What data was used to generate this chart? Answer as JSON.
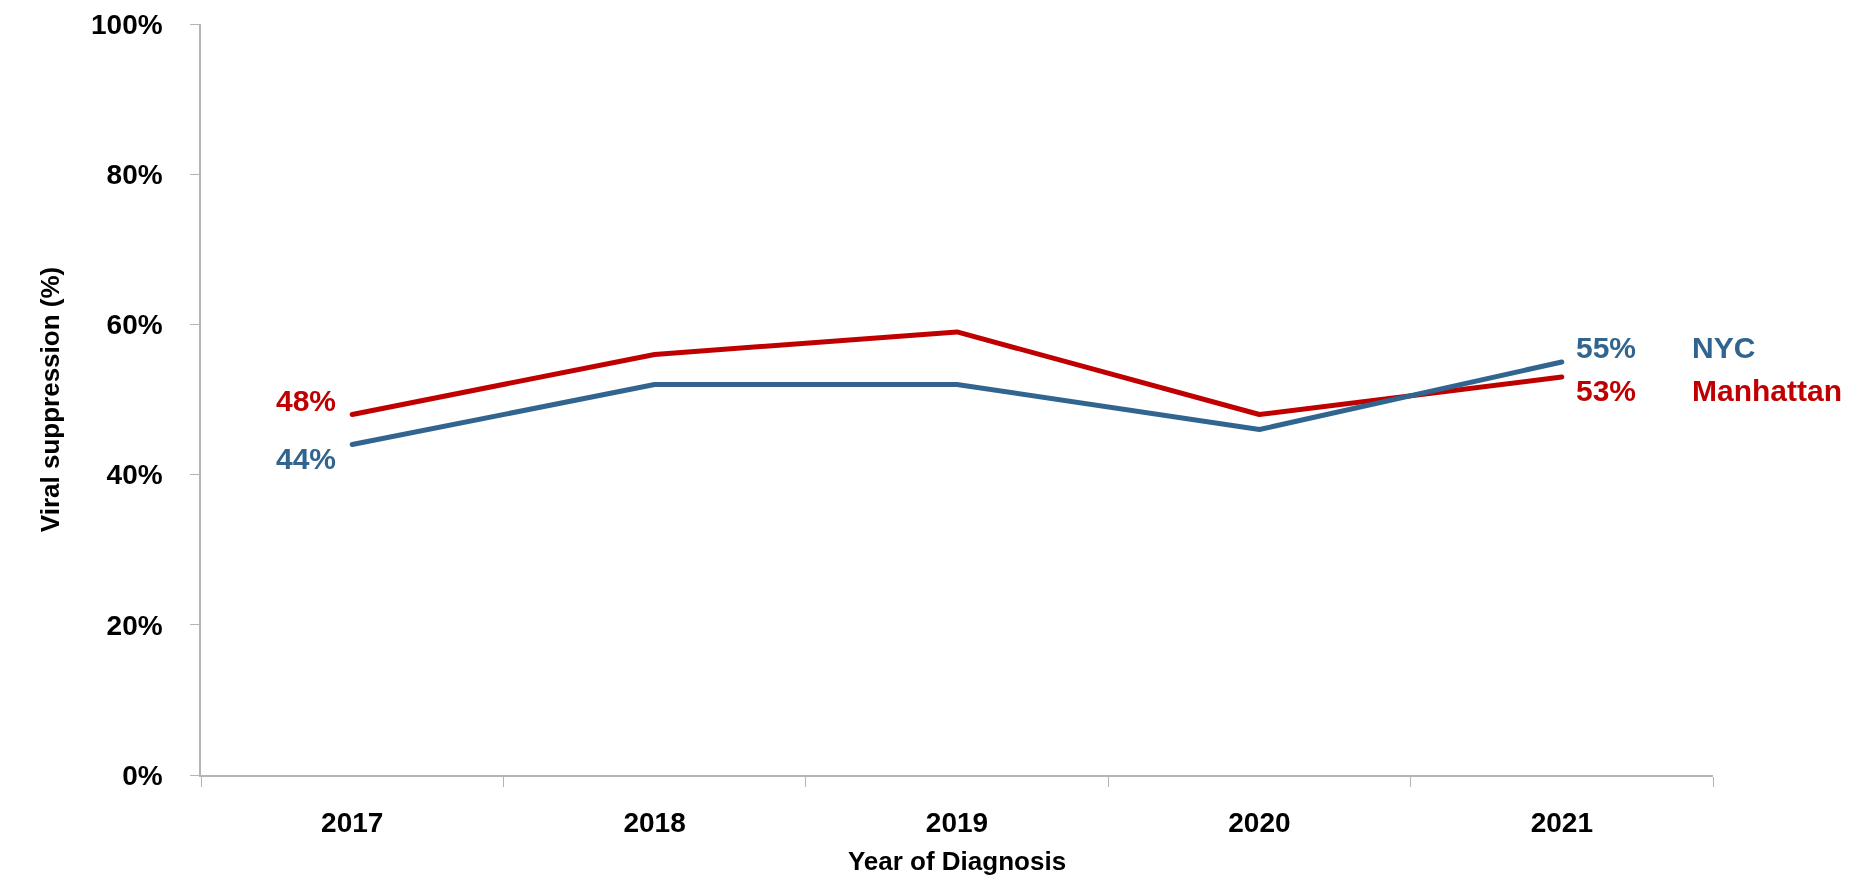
{
  "chart_data": {
    "type": "line",
    "xlabel": "Year of Diagnosis",
    "ylabel": "Viral suppression (%)",
    "categories": [
      "2017",
      "2018",
      "2019",
      "2020",
      "2021"
    ],
    "ylim": [
      0,
      100
    ],
    "yticks": [
      {
        "value": 0,
        "label": "0%"
      },
      {
        "value": 20,
        "label": "20%"
      },
      {
        "value": 40,
        "label": "40%"
      },
      {
        "value": 60,
        "label": "60%"
      },
      {
        "value": 80,
        "label": "80%"
      },
      {
        "value": 100,
        "label": "100%"
      }
    ],
    "series": [
      {
        "name": "Manhattan",
        "color": "#c00000",
        "values": [
          48,
          56,
          59,
          48,
          53
        ],
        "value_labels": [
          "48%",
          null,
          null,
          null,
          "53%"
        ]
      },
      {
        "name": "NYC",
        "color": "#31658f",
        "values": [
          44,
          52,
          52,
          46,
          55
        ],
        "value_labels": [
          "44%",
          null,
          null,
          null,
          "55%"
        ]
      }
    ]
  }
}
